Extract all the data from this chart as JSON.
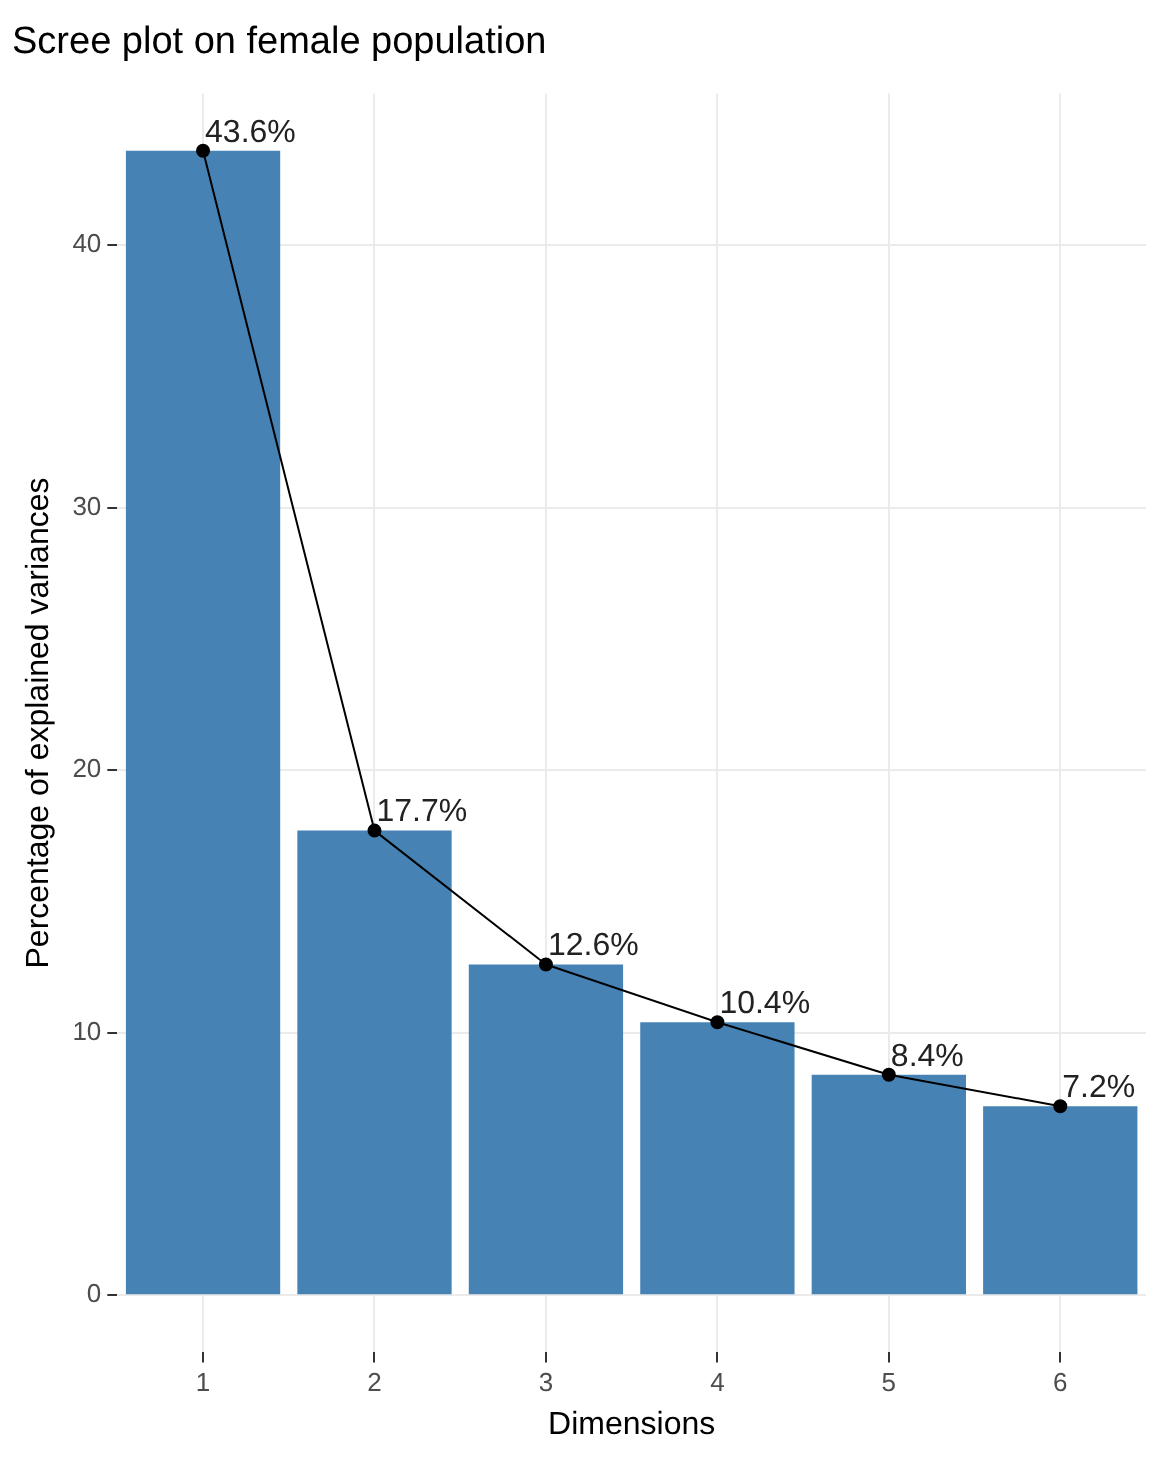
{
  "chart_data": {
    "type": "bar",
    "title": "Scree plot on female population",
    "xlabel": "Dimensions",
    "ylabel": "Percentage of explained variances",
    "categories": [
      "1",
      "2",
      "3",
      "4",
      "5",
      "6"
    ],
    "series": [
      {
        "color": "#4682b4",
        "values": [
          43.6,
          17.7,
          12.6,
          10.4,
          8.4,
          7.2
        ]
      },
      {
        "type": "line",
        "color": "#000000",
        "values": [
          43.6,
          17.7,
          12.6,
          10.4,
          8.4,
          7.2
        ],
        "value_labels": [
          "43.6%",
          "17.7%",
          "12.6%",
          "10.4%",
          "8.4%",
          "7.2%"
        ]
      }
    ],
    "ylim": [
      -2.18,
      45.78
    ],
    "yticks": [
      0,
      10,
      20,
      30,
      40
    ],
    "grid": true,
    "legend": false,
    "marker": "circle",
    "line_style": "solid"
  }
}
